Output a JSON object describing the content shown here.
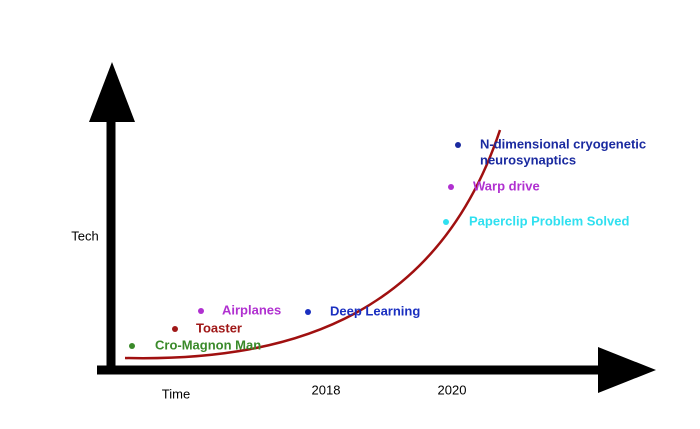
{
  "axes": {
    "y_label": "Tech",
    "x_label": "Time",
    "x_marks": [
      "2018",
      "2020"
    ]
  },
  "points": [
    {
      "label": [
        "Cro-Magnon Man"
      ],
      "color": "#3a8a2a"
    },
    {
      "label": [
        "Toaster"
      ],
      "color": "#a01818"
    },
    {
      "label": [
        "Airplanes"
      ],
      "color": "#b030d0"
    },
    {
      "label": [
        "Deep Learning"
      ],
      "color": "#1a2fc0"
    },
    {
      "label": [
        "Paperclip Problem Solved"
      ],
      "color": "#30e0f0"
    },
    {
      "label": [
        "Warp drive"
      ],
      "color": "#b030d0"
    },
    {
      "label": [
        "N-dimensional cryogenetic",
        "neurosynaptics"
      ],
      "color": "#1a2aa0"
    }
  ]
}
